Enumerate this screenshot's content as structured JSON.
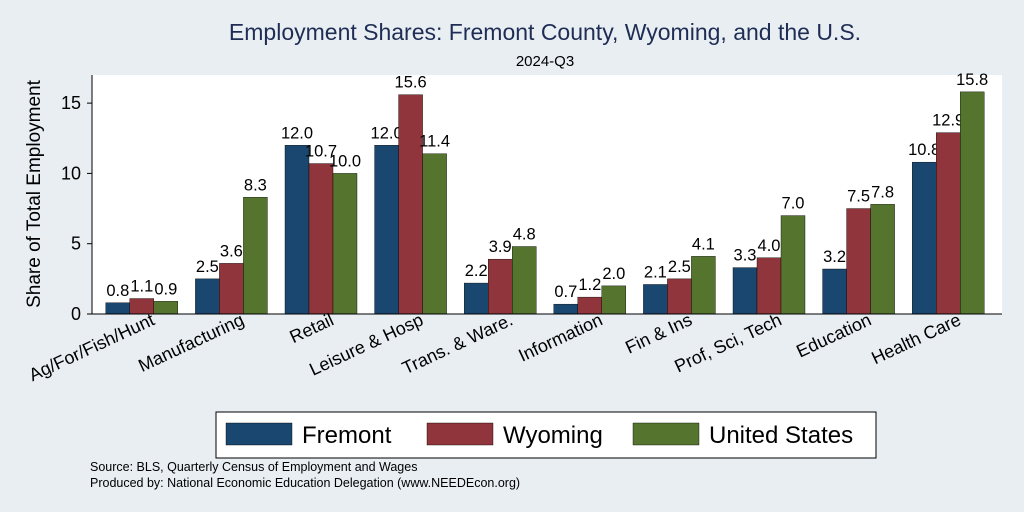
{
  "chart_data": {
    "type": "bar",
    "title": "Employment Shares: Fremont County, Wyoming, and the U.S.",
    "subtitle": "2024-Q3",
    "xlabel": "",
    "ylabel": "Share of Total Employment",
    "ylim": [
      0,
      17
    ],
    "yticks": [
      0,
      5,
      10,
      15
    ],
    "grid": false,
    "legend_position": "bottom",
    "categories": [
      "Ag/For/Fish/Hunt",
      "Manufacturing",
      "Retail",
      "Leisure & Hosp",
      "Trans. & Ware.",
      "Information",
      "Fin & Ins",
      "Prof, Sci, Tech",
      "Education",
      "Health Care"
    ],
    "series": [
      {
        "name": "Fremont",
        "color": "#1a476f",
        "values": [
          0.8,
          2.5,
          12.0,
          12.0,
          2.2,
          0.7,
          2.1,
          3.3,
          3.2,
          10.8
        ]
      },
      {
        "name": "Wyoming",
        "color": "#90353b",
        "values": [
          1.1,
          3.6,
          10.7,
          15.6,
          3.9,
          1.2,
          2.5,
          4.0,
          7.5,
          12.9
        ]
      },
      {
        "name": "United States",
        "color": "#55752f",
        "values": [
          0.9,
          8.3,
          10.0,
          11.4,
          4.8,
          2.0,
          4.1,
          7.0,
          7.8,
          15.8
        ]
      }
    ],
    "notes": [
      "Source: BLS, Quarterly Census of Employment and Wages",
      "Produced by: National Economic Education Delegation (www.NEEDEcon.org)"
    ]
  }
}
